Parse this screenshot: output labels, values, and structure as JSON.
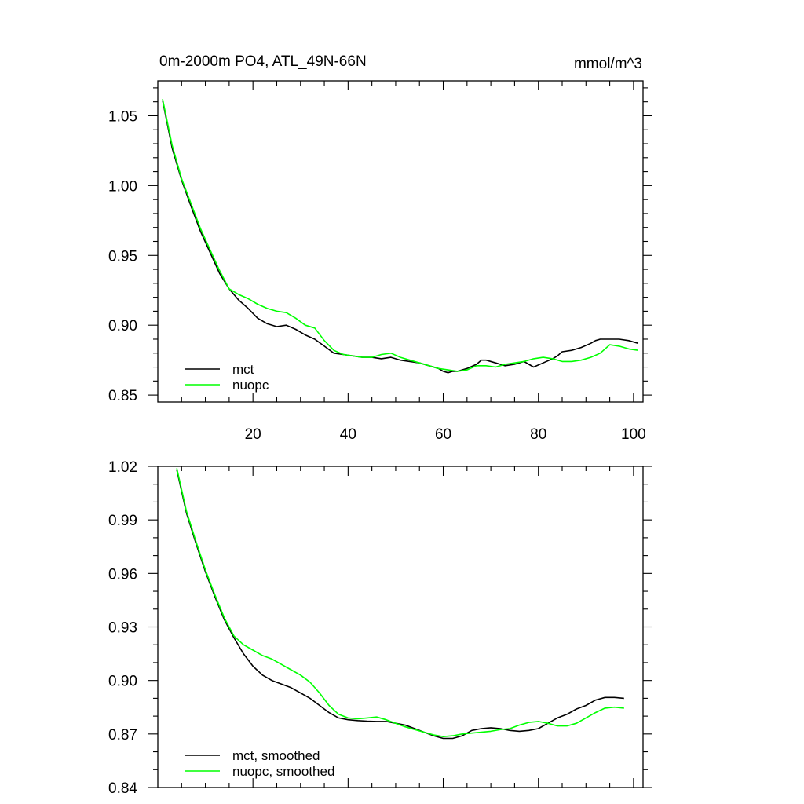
{
  "chart_data": [
    {
      "type": "line",
      "title": "0m-2000m PO4, ATL_49N-66N",
      "units": "mmol/m^3",
      "xlabel": "",
      "ylabel": "",
      "xlim": [
        0,
        102
      ],
      "ylim": [
        0.845,
        1.075
      ],
      "x_ticks": [
        20,
        40,
        60,
        80,
        100
      ],
      "x_tick_labels": [
        "20",
        "40",
        "60",
        "80",
        "100"
      ],
      "y_ticks": [
        0.85,
        0.9,
        0.95,
        1.0,
        1.05
      ],
      "y_tick_labels": [
        "0.85",
        "0.90",
        "0.95",
        "1.00",
        "1.05"
      ],
      "legend_position": "bottom-left",
      "series": [
        {
          "name": "mct",
          "color": "#000000",
          "x": [
            1,
            3,
            5,
            7,
            9,
            11,
            13,
            15,
            17,
            19,
            21,
            23,
            25,
            27,
            29,
            31,
            33,
            35,
            37,
            39,
            41,
            43,
            45,
            47,
            49,
            51,
            53,
            55,
            57,
            59,
            60,
            61,
            62,
            63,
            65,
            67,
            68,
            69,
            71,
            73,
            75,
            77,
            78,
            79,
            81,
            83,
            84,
            85,
            87,
            89,
            91,
            92,
            93,
            95,
            97,
            99,
            101
          ],
          "values": [
            1.061,
            1.027,
            1.004,
            0.985,
            0.967,
            0.952,
            0.937,
            0.926,
            0.918,
            0.912,
            0.905,
            0.901,
            0.899,
            0.9,
            0.897,
            0.893,
            0.89,
            0.885,
            0.88,
            0.879,
            0.878,
            0.877,
            0.877,
            0.876,
            0.877,
            0.875,
            0.874,
            0.873,
            0.871,
            0.869,
            0.867,
            0.866,
            0.867,
            0.867,
            0.869,
            0.872,
            0.875,
            0.875,
            0.873,
            0.871,
            0.872,
            0.874,
            0.872,
            0.87,
            0.873,
            0.876,
            0.878,
            0.881,
            0.882,
            0.884,
            0.887,
            0.889,
            0.89,
            0.89,
            0.89,
            0.889,
            0.887
          ]
        },
        {
          "name": "nuopc",
          "color": "#00ff00",
          "x": [
            1,
            3,
            5,
            7,
            9,
            11,
            13,
            15,
            17,
            19,
            21,
            23,
            25,
            27,
            29,
            31,
            33,
            35,
            37,
            39,
            41,
            43,
            45,
            47,
            49,
            51,
            53,
            55,
            57,
            59,
            61,
            63,
            65,
            67,
            69,
            71,
            73,
            75,
            77,
            79,
            81,
            83,
            85,
            87,
            89,
            91,
            93,
            95,
            97,
            99,
            101
          ],
          "values": [
            1.062,
            1.029,
            1.005,
            0.987,
            0.969,
            0.954,
            0.939,
            0.926,
            0.922,
            0.919,
            0.915,
            0.912,
            0.91,
            0.909,
            0.905,
            0.9,
            0.898,
            0.889,
            0.882,
            0.879,
            0.878,
            0.877,
            0.877,
            0.879,
            0.88,
            0.877,
            0.875,
            0.873,
            0.871,
            0.869,
            0.868,
            0.867,
            0.868,
            0.871,
            0.871,
            0.87,
            0.872,
            0.873,
            0.874,
            0.876,
            0.877,
            0.876,
            0.874,
            0.874,
            0.875,
            0.877,
            0.88,
            0.886,
            0.885,
            0.883,
            0.882
          ]
        }
      ]
    },
    {
      "type": "line",
      "title": "",
      "units": "",
      "xlabel": "",
      "ylabel": "",
      "xlim": [
        0,
        102
      ],
      "ylim": [
        0.84,
        1.02
      ],
      "x_ticks": [
        20,
        40,
        60,
        80,
        100
      ],
      "x_tick_labels": [],
      "y_ticks": [
        0.84,
        0.87,
        0.9,
        0.93,
        0.96,
        0.99,
        1.02
      ],
      "y_tick_labels": [
        "0.84",
        "0.87",
        "0.90",
        "0.93",
        "0.96",
        "0.99",
        "1.02"
      ],
      "legend_position": "bottom-left",
      "series": [
        {
          "name": "mct, smoothed",
          "color": "#000000",
          "x": [
            4,
            6,
            8,
            10,
            12,
            14,
            16,
            18,
            20,
            22,
            24,
            26,
            28,
            30,
            32,
            34,
            36,
            38,
            40,
            42,
            44,
            46,
            48,
            50,
            52,
            54,
            56,
            58,
            60,
            62,
            64,
            66,
            68,
            70,
            72,
            74,
            76,
            78,
            80,
            82,
            84,
            86,
            88,
            90,
            92,
            94,
            96,
            98
          ],
          "values": [
            1.018,
            0.994,
            0.977,
            0.961,
            0.947,
            0.934,
            0.924,
            0.915,
            0.908,
            0.903,
            0.9,
            0.898,
            0.896,
            0.893,
            0.89,
            0.886,
            0.882,
            0.879,
            0.878,
            0.8775,
            0.8772,
            0.877,
            0.877,
            0.876,
            0.875,
            0.873,
            0.871,
            0.869,
            0.8675,
            0.8675,
            0.869,
            0.872,
            0.873,
            0.8735,
            0.873,
            0.872,
            0.8715,
            0.872,
            0.873,
            0.876,
            0.879,
            0.881,
            0.884,
            0.886,
            0.889,
            0.8905,
            0.8905,
            0.89
          ]
        },
        {
          "name": "nuopc, smoothed",
          "color": "#00ff00",
          "x": [
            4,
            6,
            8,
            10,
            12,
            14,
            16,
            18,
            20,
            22,
            24,
            26,
            28,
            30,
            32,
            34,
            36,
            38,
            40,
            42,
            44,
            46,
            48,
            50,
            52,
            54,
            56,
            58,
            60,
            62,
            64,
            66,
            68,
            70,
            72,
            74,
            76,
            78,
            80,
            82,
            84,
            86,
            88,
            90,
            92,
            94,
            96,
            98
          ],
          "values": [
            1.019,
            0.995,
            0.978,
            0.962,
            0.948,
            0.935,
            0.925,
            0.92,
            0.917,
            0.914,
            0.912,
            0.909,
            0.906,
            0.903,
            0.899,
            0.893,
            0.886,
            0.881,
            0.879,
            0.8785,
            0.879,
            0.8795,
            0.878,
            0.876,
            0.874,
            0.8725,
            0.871,
            0.8695,
            0.8685,
            0.869,
            0.87,
            0.8705,
            0.871,
            0.8715,
            0.8725,
            0.873,
            0.875,
            0.8765,
            0.877,
            0.876,
            0.8745,
            0.8745,
            0.876,
            0.879,
            0.882,
            0.8845,
            0.885,
            0.8845
          ]
        }
      ]
    }
  ]
}
